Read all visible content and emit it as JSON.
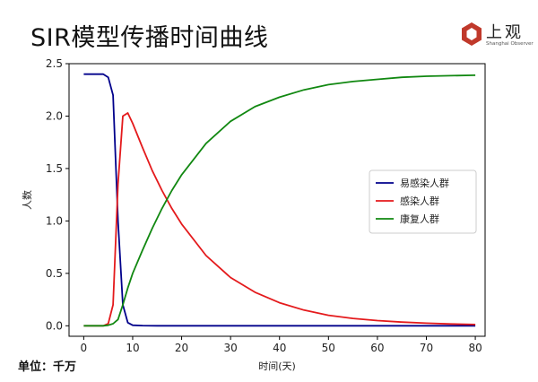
{
  "header": {
    "title": "SIR模型传播时间曲线",
    "brand_name": "上观",
    "brand_sub": "Shanghai Observer"
  },
  "footer": {
    "unit_label": "单位：千万"
  },
  "colors": {
    "susceptible": "#00008b",
    "infected": "#e41a1c",
    "recovered": "#118811",
    "brand": "#c0392b"
  },
  "chart_data": {
    "type": "line",
    "title": "",
    "xlabel": "时间(天)",
    "ylabel": "人数",
    "xlim": [
      -3,
      82
    ],
    "ylim": [
      -0.1,
      2.5
    ],
    "xticks": [
      0,
      10,
      20,
      30,
      40,
      50,
      60,
      70,
      80
    ],
    "yticks": [
      0.0,
      0.5,
      1.0,
      1.5,
      2.0,
      2.5
    ],
    "ytick_labels": [
      "0.0",
      "0.5",
      "1.0",
      "1.5",
      "2.0",
      "2.5"
    ],
    "grid": false,
    "legend_position": "center-right",
    "series": [
      {
        "name": "易感染人群",
        "color": "#00008b",
        "x": [
          0,
          1,
          2,
          3,
          4,
          5,
          6,
          7,
          8,
          9,
          10,
          12,
          15,
          20,
          30,
          40,
          50,
          60,
          70,
          80
        ],
        "y": [
          2.4,
          2.4,
          2.4,
          2.4,
          2.4,
          2.37,
          2.2,
          1.0,
          0.2,
          0.03,
          0.005,
          0.002,
          0.0,
          0.0,
          0.0,
          0.0,
          0.0,
          0.0,
          0.0,
          0.0
        ]
      },
      {
        "name": "感染人群",
        "color": "#e41a1c",
        "x": [
          0,
          1,
          2,
          3,
          4,
          5,
          6,
          7,
          8,
          9,
          10,
          12,
          14,
          16,
          18,
          20,
          25,
          30,
          35,
          40,
          45,
          50,
          55,
          60,
          65,
          70,
          75,
          80
        ],
        "y": [
          0.0,
          0.0,
          0.0,
          0.0,
          0.0,
          0.02,
          0.2,
          1.35,
          2.0,
          2.03,
          1.93,
          1.7,
          1.48,
          1.29,
          1.12,
          0.97,
          0.67,
          0.46,
          0.32,
          0.22,
          0.15,
          0.1,
          0.07,
          0.05,
          0.035,
          0.025,
          0.017,
          0.012
        ]
      },
      {
        "name": "康复人群",
        "color": "#118811",
        "x": [
          0,
          1,
          2,
          3,
          4,
          5,
          6,
          7,
          8,
          9,
          10,
          12,
          14,
          16,
          18,
          20,
          25,
          30,
          35,
          40,
          45,
          50,
          55,
          60,
          65,
          70,
          75,
          80
        ],
        "y": [
          0.0,
          0.0,
          0.0,
          0.0,
          0.0,
          0.005,
          0.02,
          0.06,
          0.2,
          0.36,
          0.5,
          0.72,
          0.93,
          1.12,
          1.29,
          1.44,
          1.74,
          1.95,
          2.09,
          2.18,
          2.25,
          2.3,
          2.33,
          2.35,
          2.37,
          2.38,
          2.385,
          2.39
        ]
      }
    ]
  }
}
